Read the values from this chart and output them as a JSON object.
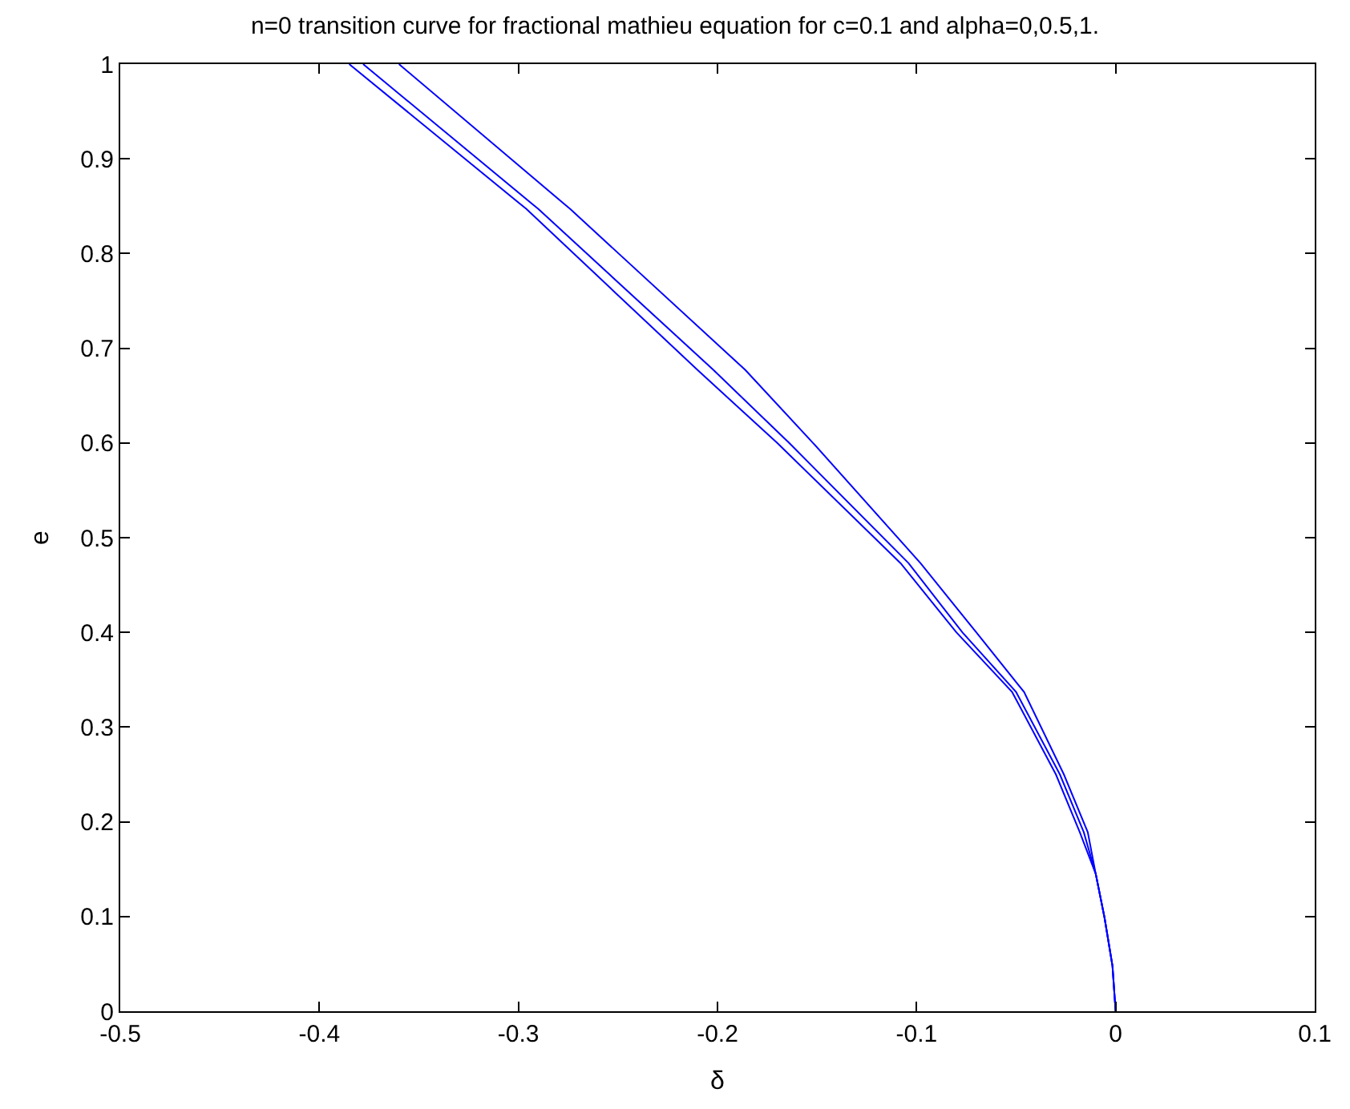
{
  "chart_data": {
    "type": "line",
    "title": "n=0 transition curve for fractional mathieu equation for c=0.1 and alpha=0,0.5,1.",
    "xlabel": "δ",
    "ylabel": "e",
    "x": [
      0,
      -0.0016,
      -0.0056,
      -0.01,
      -0.016,
      -0.028,
      -0.05,
      -0.077,
      -0.104,
      -0.164,
      -0.202,
      -0.29,
      -0.378
    ],
    "series": [
      {
        "color": "#0000ff",
        "x": [
          0,
          -0.0016,
          -0.0056,
          -0.01,
          -0.018,
          -0.03,
          -0.052,
          -0.08,
          -0.108,
          -0.17,
          -0.21,
          -0.296,
          -0.385
        ],
        "values": [
          0,
          0.048,
          0.099,
          0.145,
          0.189,
          0.25,
          0.337,
          0.4,
          0.473,
          0.6,
          0.677,
          0.847,
          1
        ]
      },
      {
        "color": "#0000ff",
        "values": [
          0,
          0.048,
          0.099,
          0.145,
          0.189,
          0.25,
          0.337,
          0.4,
          0.473,
          0.6,
          0.677,
          0.847,
          1
        ]
      },
      {
        "color": "#0000ff",
        "x": [
          0,
          -0.0016,
          -0.0056,
          -0.01,
          -0.014,
          -0.026,
          -0.046,
          -0.07,
          -0.098,
          -0.152,
          -0.186,
          -0.274,
          -0.36
        ],
        "values": [
          0,
          0.048,
          0.099,
          0.145,
          0.189,
          0.25,
          0.337,
          0.4,
          0.473,
          0.6,
          0.677,
          0.847,
          1
        ]
      }
    ],
    "xlim": [
      -0.5,
      0.1
    ],
    "xticks": [
      {
        "value": -0.5,
        "label": "-0.5"
      },
      {
        "value": -0.4,
        "label": "-0.4"
      },
      {
        "value": -0.3,
        "label": "-0.3"
      },
      {
        "value": -0.2,
        "label": "-0.2"
      },
      {
        "value": -0.1,
        "label": "-0.1"
      },
      0,
      0.1
    ],
    "ylim": [
      0,
      1
    ],
    "yticks": [
      0,
      0.1,
      0.2,
      0.3,
      0.4,
      0.5,
      0.6,
      0.7,
      0.8,
      0.9,
      1
    ],
    "marker": "none",
    "line_style": "solid"
  }
}
